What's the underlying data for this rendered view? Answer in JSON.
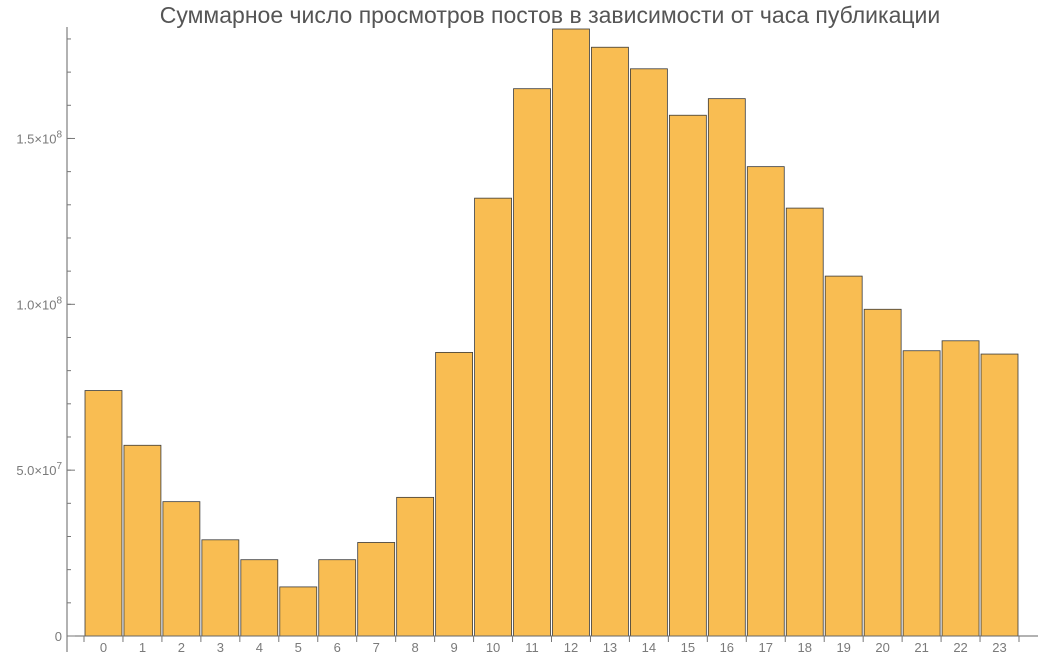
{
  "chart_data": {
    "type": "bar",
    "title": "Суммарное число просмотров постов в зависимости от часа публикации",
    "xlabel": "",
    "ylabel": "",
    "categories": [
      "0",
      "1",
      "2",
      "3",
      "4",
      "5",
      "6",
      "7",
      "8",
      "9",
      "10",
      "11",
      "12",
      "13",
      "14",
      "15",
      "16",
      "17",
      "18",
      "19",
      "20",
      "21",
      "22",
      "23"
    ],
    "values": [
      74000000,
      57500000,
      40500000,
      29000000,
      23000000,
      14800000,
      23000000,
      28200000,
      41800000,
      85500000,
      132000000,
      165000000,
      183000000,
      177500000,
      171000000,
      157000000,
      162000000,
      141500000,
      129000000,
      108500000,
      98500000,
      86000000,
      89000000,
      85000000
    ],
    "ylim": [
      0,
      183000000
    ],
    "y_ticks": [
      {
        "value": 0,
        "mantissa": "0",
        "exponent": ""
      },
      {
        "value": 50000000,
        "mantissa": "5.0×10",
        "exponent": "7"
      },
      {
        "value": 100000000,
        "mantissa": "1.0×10",
        "exponent": "8"
      },
      {
        "value": 150000000,
        "mantissa": "1.5×10",
        "exponent": "8"
      }
    ],
    "y_minor_step": 10000000,
    "bar_color": "#f9bd52",
    "grid": false,
    "legend": "none"
  }
}
